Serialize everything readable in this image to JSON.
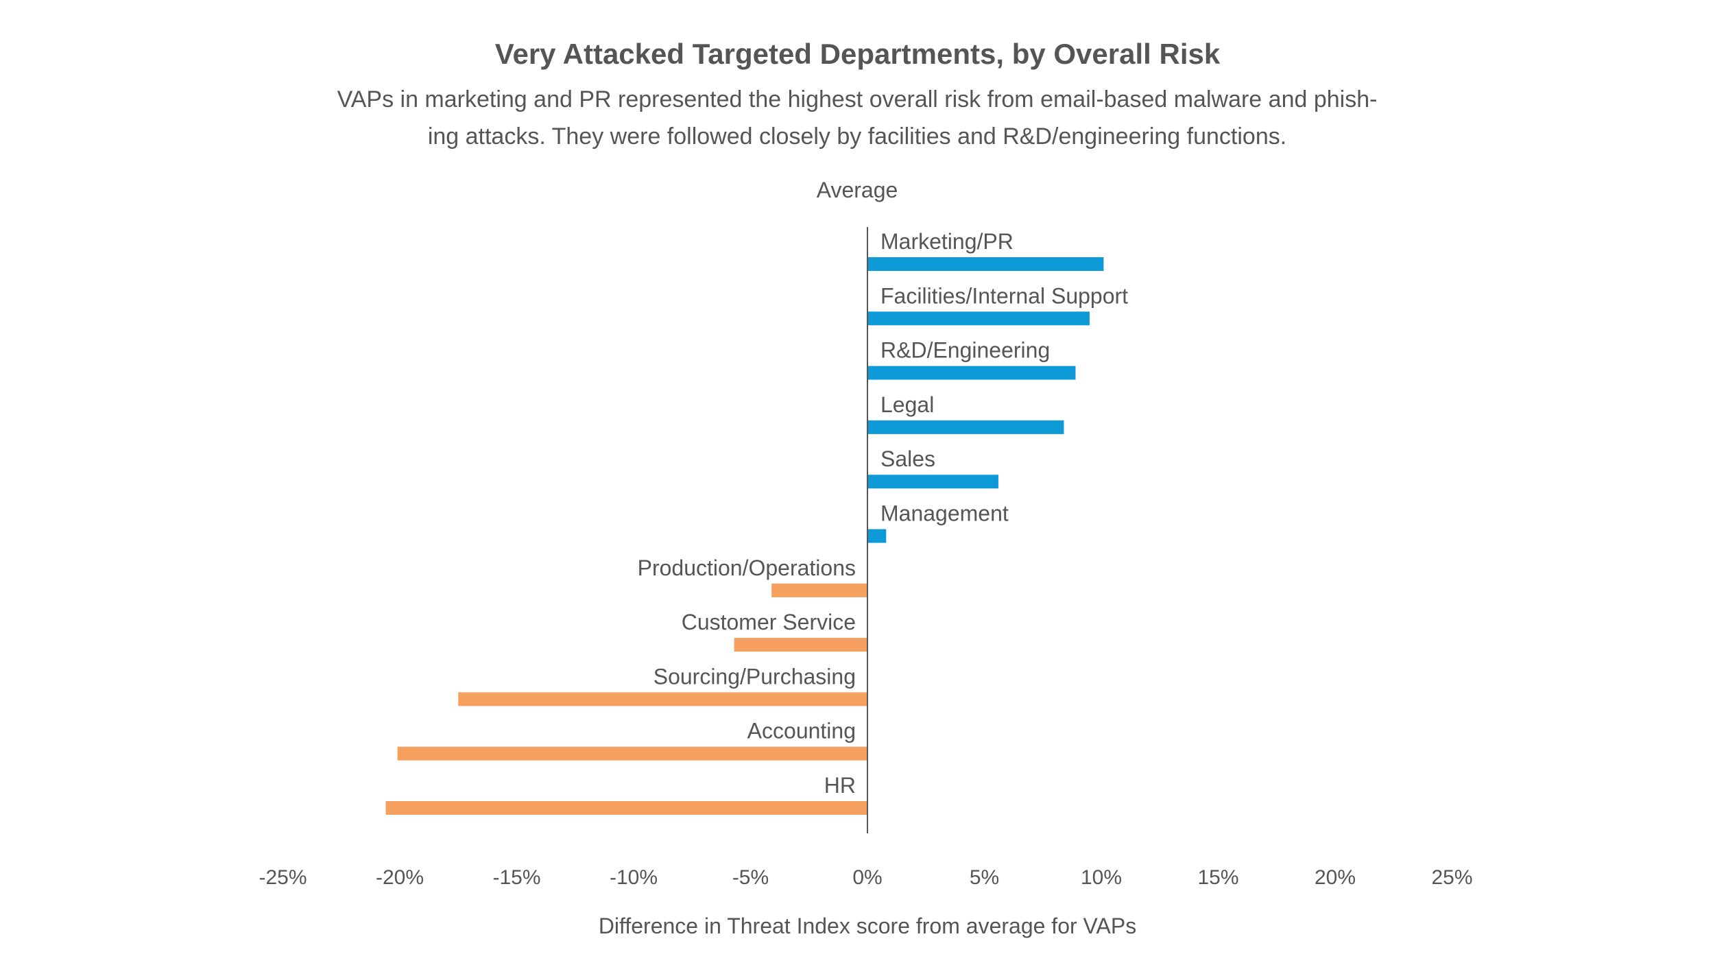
{
  "title": "Very Attacked Targeted Departments, by Overall Risk",
  "subtitle_line1": "VAPs in marketing and PR represented the highest overall risk from email-based malware and phish-",
  "subtitle_line2": "ing attacks. They were followed closely by facilities and R&D/engineering functions.",
  "chart_data": {
    "type": "bar",
    "orientation": "horizontal",
    "average_label": "Average",
    "xlabel": "Difference in Threat Index score from average for VAPs",
    "xlim": [
      -25,
      25
    ],
    "xticks": [
      -25,
      -20,
      -15,
      -10,
      -5,
      0,
      5,
      10,
      15,
      20,
      25
    ],
    "xtick_labels": [
      "-25%",
      "-20%",
      "-15%",
      "-10%",
      "-5%",
      "0%",
      "5%",
      "10%",
      "15%",
      "20%",
      "25%"
    ],
    "grid": false,
    "legend": "none",
    "colors": {
      "positive": "#0E9AD7",
      "negative": "#F5A05E",
      "axis": "#555555"
    },
    "categories": [
      "Marketing/PR",
      "Facilities/Internal Support",
      "R&D/Engineering",
      "Legal",
      "Sales",
      "Management",
      "Production/Operations",
      "Customer Service",
      "Sourcing/Purchasing",
      "Accounting",
      "HR"
    ],
    "values": [
      10.1,
      9.5,
      8.9,
      8.4,
      5.6,
      0.8,
      -4.1,
      -5.7,
      -17.5,
      -20.1,
      -20.6
    ]
  }
}
